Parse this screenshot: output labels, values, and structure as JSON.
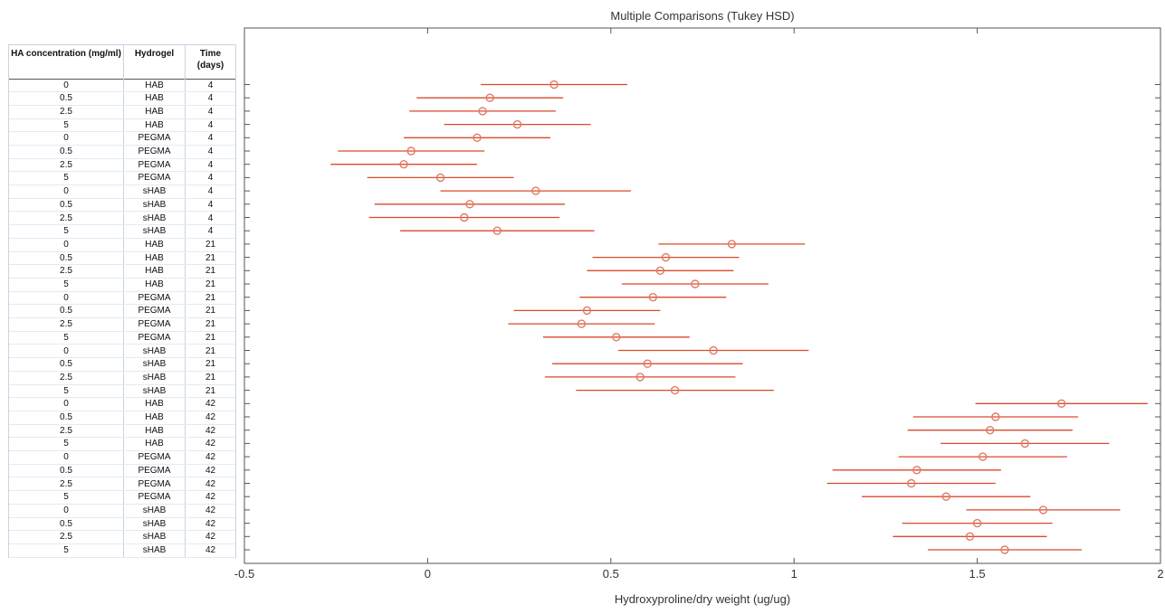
{
  "chart_data": {
    "type": "scatter",
    "title": "Multiple Comparisons (Tukey HSD)",
    "xlabel": "Hydroxyproline/dry weight (ug/ug)",
    "ylabel": "",
    "xlim": [
      -0.5,
      2
    ],
    "xticks": [
      "-0.5",
      "0",
      "0.5",
      "1",
      "1.5",
      "2"
    ],
    "xtick_values": [
      -0.5,
      0,
      0.5,
      1,
      1.5,
      2
    ],
    "grid": false,
    "colors": {
      "marker": "#e07a62",
      "interval": "#d94a2c",
      "axis": "#555555"
    },
    "table_headers": [
      "HA concentration (mg/ml)",
      "Hydrogel",
      "Time (days)"
    ],
    "groups": [
      {
        "ha": "0",
        "gel": "HAB",
        "time": "4",
        "mean": 0.345,
        "lo": 0.145,
        "hi": 0.545
      },
      {
        "ha": "0.5",
        "gel": "HAB",
        "time": "4",
        "mean": 0.17,
        "lo": -0.03,
        "hi": 0.37
      },
      {
        "ha": "2.5",
        "gel": "HAB",
        "time": "4",
        "mean": 0.15,
        "lo": -0.05,
        "hi": 0.35
      },
      {
        "ha": "5",
        "gel": "HAB",
        "time": "4",
        "mean": 0.245,
        "lo": 0.045,
        "hi": 0.445
      },
      {
        "ha": "0",
        "gel": "PEGMA",
        "time": "4",
        "mean": 0.135,
        "lo": -0.065,
        "hi": 0.335
      },
      {
        "ha": "0.5",
        "gel": "PEGMA",
        "time": "4",
        "mean": -0.045,
        "lo": -0.245,
        "hi": 0.155
      },
      {
        "ha": "2.5",
        "gel": "PEGMA",
        "time": "4",
        "mean": -0.065,
        "lo": -0.265,
        "hi": 0.135
      },
      {
        "ha": "5",
        "gel": "PEGMA",
        "time": "4",
        "mean": 0.035,
        "lo": -0.165,
        "hi": 0.235
      },
      {
        "ha": "0",
        "gel": "sHAB",
        "time": "4",
        "mean": 0.295,
        "lo": 0.035,
        "hi": 0.555
      },
      {
        "ha": "0.5",
        "gel": "sHAB",
        "time": "4",
        "mean": 0.115,
        "lo": -0.145,
        "hi": 0.375
      },
      {
        "ha": "2.5",
        "gel": "sHAB",
        "time": "4",
        "mean": 0.1,
        "lo": -0.16,
        "hi": 0.36
      },
      {
        "ha": "5",
        "gel": "sHAB",
        "time": "4",
        "mean": 0.19,
        "lo": -0.075,
        "hi": 0.455
      },
      {
        "ha": "0",
        "gel": "HAB",
        "time": "21",
        "mean": 0.83,
        "lo": 0.63,
        "hi": 1.03
      },
      {
        "ha": "0.5",
        "gel": "HAB",
        "time": "21",
        "mean": 0.65,
        "lo": 0.45,
        "hi": 0.85
      },
      {
        "ha": "2.5",
        "gel": "HAB",
        "time": "21",
        "mean": 0.635,
        "lo": 0.435,
        "hi": 0.835
      },
      {
        "ha": "5",
        "gel": "HAB",
        "time": "21",
        "mean": 0.73,
        "lo": 0.53,
        "hi": 0.93
      },
      {
        "ha": "0",
        "gel": "PEGMA",
        "time": "21",
        "mean": 0.615,
        "lo": 0.415,
        "hi": 0.815
      },
      {
        "ha": "0.5",
        "gel": "PEGMA",
        "time": "21",
        "mean": 0.435,
        "lo": 0.235,
        "hi": 0.635
      },
      {
        "ha": "2.5",
        "gel": "PEGMA",
        "time": "21",
        "mean": 0.42,
        "lo": 0.22,
        "hi": 0.62
      },
      {
        "ha": "5",
        "gel": "PEGMA",
        "time": "21",
        "mean": 0.515,
        "lo": 0.315,
        "hi": 0.715
      },
      {
        "ha": "0",
        "gel": "sHAB",
        "time": "21",
        "mean": 0.78,
        "lo": 0.52,
        "hi": 1.04
      },
      {
        "ha": "0.5",
        "gel": "sHAB",
        "time": "21",
        "mean": 0.6,
        "lo": 0.34,
        "hi": 0.86
      },
      {
        "ha": "2.5",
        "gel": "sHAB",
        "time": "21",
        "mean": 0.58,
        "lo": 0.32,
        "hi": 0.84
      },
      {
        "ha": "5",
        "gel": "sHAB",
        "time": "21",
        "mean": 0.675,
        "lo": 0.405,
        "hi": 0.945
      },
      {
        "ha": "0",
        "gel": "HAB",
        "time": "42",
        "mean": 1.73,
        "lo": 1.495,
        "hi": 1.965
      },
      {
        "ha": "0.5",
        "gel": "HAB",
        "time": "42",
        "mean": 1.55,
        "lo": 1.325,
        "hi": 1.775
      },
      {
        "ha": "2.5",
        "gel": "HAB",
        "time": "42",
        "mean": 1.535,
        "lo": 1.31,
        "hi": 1.76
      },
      {
        "ha": "5",
        "gel": "HAB",
        "time": "42",
        "mean": 1.63,
        "lo": 1.4,
        "hi": 1.86
      },
      {
        "ha": "0",
        "gel": "PEGMA",
        "time": "42",
        "mean": 1.515,
        "lo": 1.285,
        "hi": 1.745
      },
      {
        "ha": "0.5",
        "gel": "PEGMA",
        "time": "42",
        "mean": 1.335,
        "lo": 1.105,
        "hi": 1.565
      },
      {
        "ha": "2.5",
        "gel": "PEGMA",
        "time": "42",
        "mean": 1.32,
        "lo": 1.09,
        "hi": 1.55
      },
      {
        "ha": "5",
        "gel": "PEGMA",
        "time": "42",
        "mean": 1.415,
        "lo": 1.185,
        "hi": 1.645
      },
      {
        "ha": "0",
        "gel": "sHAB",
        "time": "42",
        "mean": 1.68,
        "lo": 1.47,
        "hi": 1.89
      },
      {
        "ha": "0.5",
        "gel": "sHAB",
        "time": "42",
        "mean": 1.5,
        "lo": 1.295,
        "hi": 1.705
      },
      {
        "ha": "2.5",
        "gel": "sHAB",
        "time": "42",
        "mean": 1.48,
        "lo": 1.27,
        "hi": 1.69
      },
      {
        "ha": "5",
        "gel": "sHAB",
        "time": "42",
        "mean": 1.575,
        "lo": 1.365,
        "hi": 1.785
      }
    ]
  }
}
